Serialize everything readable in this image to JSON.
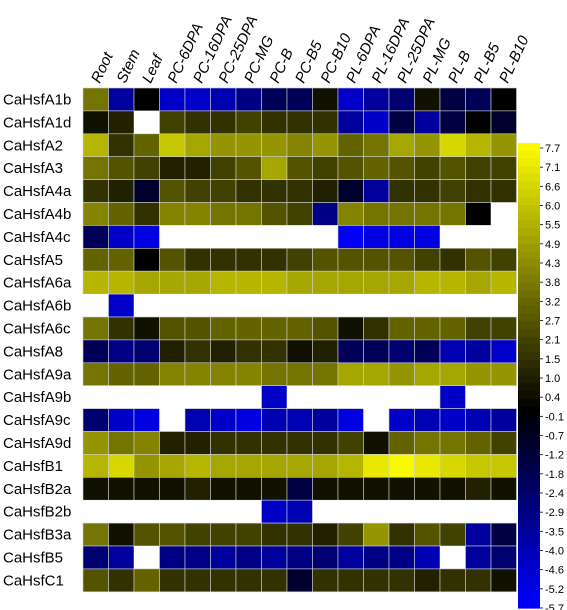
{
  "chart_data": {
    "type": "heatmap",
    "columns": [
      "Root",
      "Stem",
      "Leaf",
      "PC-6DPA",
      "PC-16DPA",
      "PC-25DPA",
      "PC-MG",
      "PC-B",
      "PC-B5",
      "PC-B10",
      "PL-6DPA",
      "PL-16DPA",
      "PL-25DPA",
      "PL-MG",
      "PL-B",
      "PL-B5",
      "PL-B10"
    ],
    "rows": [
      "CaHsfA1b",
      "CaHsfA1d",
      "CaHsfA2",
      "CaHsfA3",
      "CaHsfA4a",
      "CaHsfA4b",
      "CaHsfA4c",
      "CaHsfA5",
      "CaHsfA6a",
      "CaHsfA6b",
      "CaHsfA6c",
      "CaHsfA8",
      "CaHsfA9a",
      "CaHsfA9b",
      "CaHsfA9c",
      "CaHsfA9d",
      "CaHsfB1",
      "CaHsfB2a",
      "CaHsfB2b",
      "CaHsfB3a",
      "CaHsfB5",
      "CaHsfC1"
    ],
    "values": [
      [
        3.5,
        -3.5,
        0.0,
        -4.5,
        -4.5,
        -4.0,
        -3.0,
        -2.0,
        -2.0,
        0.5,
        -4.5,
        -3.5,
        -2.5,
        0.5,
        -1.5,
        -2.0,
        0.0
      ],
      [
        0.5,
        1.0,
        null,
        2.0,
        1.5,
        1.5,
        2.0,
        1.5,
        1.5,
        1.5,
        -3.5,
        -4.5,
        -1.5,
        -3.5,
        -1.5,
        0.0,
        -1.0
      ],
      [
        5.5,
        1.5,
        3.0,
        6.0,
        5.0,
        4.5,
        4.5,
        4.5,
        4.0,
        4.5,
        3.0,
        3.5,
        5.0,
        4.5,
        6.5,
        5.5,
        4.5
      ],
      [
        3.5,
        2.5,
        2.0,
        1.0,
        1.0,
        2.0,
        2.5,
        5.0,
        2.5,
        2.0,
        2.5,
        3.0,
        2.5,
        2.0,
        2.5,
        2.0,
        2.0
      ],
      [
        1.5,
        1.0,
        -1.0,
        2.5,
        2.0,
        2.0,
        1.5,
        1.5,
        1.5,
        1.0,
        -1.0,
        -3.5,
        1.5,
        1.5,
        2.0,
        1.5,
        1.5
      ],
      [
        4.0,
        3.0,
        1.5,
        4.0,
        4.0,
        3.5,
        3.5,
        2.5,
        2.0,
        -3.0,
        4.0,
        3.5,
        3.5,
        3.5,
        3.5,
        0.0,
        null
      ],
      [
        -2.0,
        -4.5,
        -5.0,
        null,
        null,
        null,
        null,
        null,
        null,
        null,
        -5.5,
        -5.0,
        -5.0,
        -5.0,
        null,
        null,
        null
      ],
      [
        3.0,
        3.0,
        0.0,
        2.5,
        1.5,
        1.5,
        1.5,
        1.5,
        2.0,
        2.5,
        2.5,
        2.5,
        2.5,
        2.0,
        1.5,
        2.5,
        2.0
      ],
      [
        5.5,
        5.5,
        5.0,
        5.0,
        5.0,
        5.5,
        5.5,
        5.5,
        5.0,
        5.0,
        5.0,
        5.0,
        5.0,
        5.5,
        5.5,
        5.0,
        5.5
      ],
      [
        null,
        -4.5,
        null,
        null,
        null,
        null,
        null,
        null,
        null,
        null,
        null,
        null,
        null,
        null,
        null,
        null,
        null
      ],
      [
        3.5,
        1.5,
        0.5,
        2.5,
        2.5,
        3.0,
        3.0,
        3.0,
        3.0,
        2.5,
        0.5,
        1.5,
        3.0,
        3.0,
        3.0,
        2.0,
        2.0
      ],
      [
        -2.0,
        -3.0,
        -2.5,
        1.0,
        1.5,
        1.0,
        1.5,
        1.5,
        0.5,
        1.0,
        -2.0,
        -2.0,
        -2.5,
        -2.0,
        -4.0,
        -3.5,
        -4.5
      ],
      [
        3.5,
        3.0,
        3.0,
        4.0,
        4.0,
        4.0,
        4.0,
        3.5,
        3.5,
        3.5,
        5.0,
        5.0,
        4.5,
        5.0,
        5.0,
        4.5,
        4.5
      ],
      [
        null,
        null,
        null,
        null,
        null,
        null,
        null,
        -4.5,
        null,
        null,
        null,
        null,
        null,
        null,
        -4.5,
        null,
        null
      ],
      [
        -2.5,
        -4.5,
        -5.0,
        null,
        -4.0,
        -4.5,
        -5.0,
        -4.0,
        -4.0,
        -3.5,
        -5.0,
        null,
        -4.5,
        -4.0,
        -4.5,
        -4.0,
        -3.5
      ],
      [
        4.5,
        3.5,
        4.0,
        1.0,
        1.0,
        1.5,
        1.5,
        1.5,
        1.5,
        1.5,
        2.0,
        0.5,
        3.0,
        3.5,
        3.5,
        3.0,
        2.0
      ],
      [
        5.5,
        6.5,
        4.5,
        5.0,
        5.5,
        5.0,
        5.0,
        5.0,
        5.0,
        5.0,
        5.5,
        7.0,
        7.5,
        7.0,
        6.5,
        6.0,
        6.0
      ],
      [
        0.5,
        0.5,
        0.5,
        0.5,
        1.0,
        0.5,
        0.5,
        0.5,
        -1.5,
        0.5,
        0.5,
        0.5,
        0.5,
        0.5,
        0.5,
        1.0,
        0.5
      ],
      [
        null,
        null,
        null,
        null,
        null,
        null,
        null,
        -4.5,
        -4.0,
        null,
        null,
        null,
        null,
        null,
        null,
        null,
        null
      ],
      [
        3.5,
        0.5,
        2.5,
        2.5,
        2.0,
        2.0,
        2.0,
        1.5,
        1.5,
        1.0,
        2.0,
        4.5,
        1.5,
        2.5,
        2.0,
        -3.5,
        -1.5
      ],
      [
        -2.5,
        -3.5,
        null,
        -3.0,
        -3.0,
        -3.5,
        -3.0,
        -3.5,
        -3.0,
        -2.5,
        -3.5,
        -3.0,
        -3.0,
        -4.0,
        null,
        -3.5,
        -2.5
      ],
      [
        2.5,
        1.5,
        3.0,
        1.5,
        1.5,
        1.5,
        1.5,
        1.5,
        -1.0,
        1.5,
        1.5,
        1.5,
        1.5,
        1.0,
        1.5,
        1.5,
        0.5
      ]
    ],
    "color_scale": {
      "min": -5.7,
      "max": 7.7,
      "low_color": "#0000ff",
      "mid_color": "#000000",
      "high_color": "#ffff00",
      "missing_color": "#ffffff",
      "ticks": [
        "7.7",
        "7.1",
        "6.6",
        "6.0",
        "5.5",
        "4.9",
        "4.3",
        "3.8",
        "3.2",
        "2.7",
        "2.1",
        "1.5",
        "1.0",
        "0.4",
        "-0.1",
        "-0.7",
        "-1.2",
        "-1.8",
        "-2.4",
        "-2.9",
        "-3.5",
        "-4.0",
        "-4.6",
        "-5.2",
        "-5.7"
      ]
    },
    "grid": true,
    "legend": "right"
  }
}
